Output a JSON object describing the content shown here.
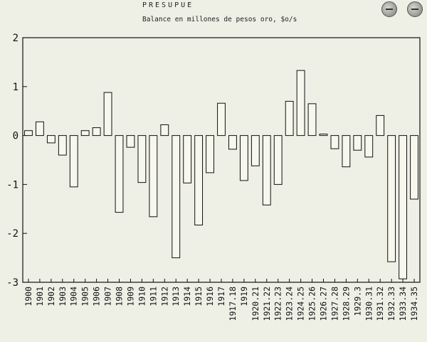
{
  "header": {
    "heading": "PRESUPUE",
    "subtitle": "Balance en millones de pesos oro, $o/s"
  },
  "chart_data": {
    "type": "bar",
    "title": "Balance en millones de pesos oro, $o/s",
    "xlabel": "",
    "ylabel": "",
    "ylim": [
      -3,
      2
    ],
    "yticks": [
      2,
      1,
      0,
      -1,
      -2,
      -3
    ],
    "grid": false,
    "categories": [
      "1900",
      "1901",
      "1902",
      "1903",
      "1904",
      "1905",
      "1906",
      "1907",
      "1908",
      "1909",
      "1910",
      "1911",
      "1912",
      "1913",
      "1914",
      "1915",
      "1916",
      "1917",
      "1917.18",
      "1919",
      "1920.21",
      "1921.22",
      "1922.23",
      "1923.24",
      "1924.25",
      "1925.26",
      "1926.27",
      "1927.28",
      "1928.29",
      "1929.3",
      "1930.31",
      "1931.32",
      "1932.33",
      "1933.34",
      "1934.35"
    ],
    "values": [
      0.1,
      0.28,
      -0.15,
      -0.4,
      -1.05,
      0.1,
      0.16,
      0.88,
      -1.57,
      -0.24,
      -0.96,
      -1.66,
      0.22,
      -2.5,
      -0.97,
      -1.83,
      -0.76,
      0.66,
      -0.28,
      -0.92,
      -0.62,
      -1.42,
      -1.0,
      0.7,
      1.33,
      0.65,
      0.03,
      -0.27,
      -0.64,
      -0.3,
      -0.44,
      0.41,
      -2.58,
      -2.93,
      -1.3
    ],
    "bar_fill": "#f7f7ee",
    "bar_stroke": "#111111"
  }
}
